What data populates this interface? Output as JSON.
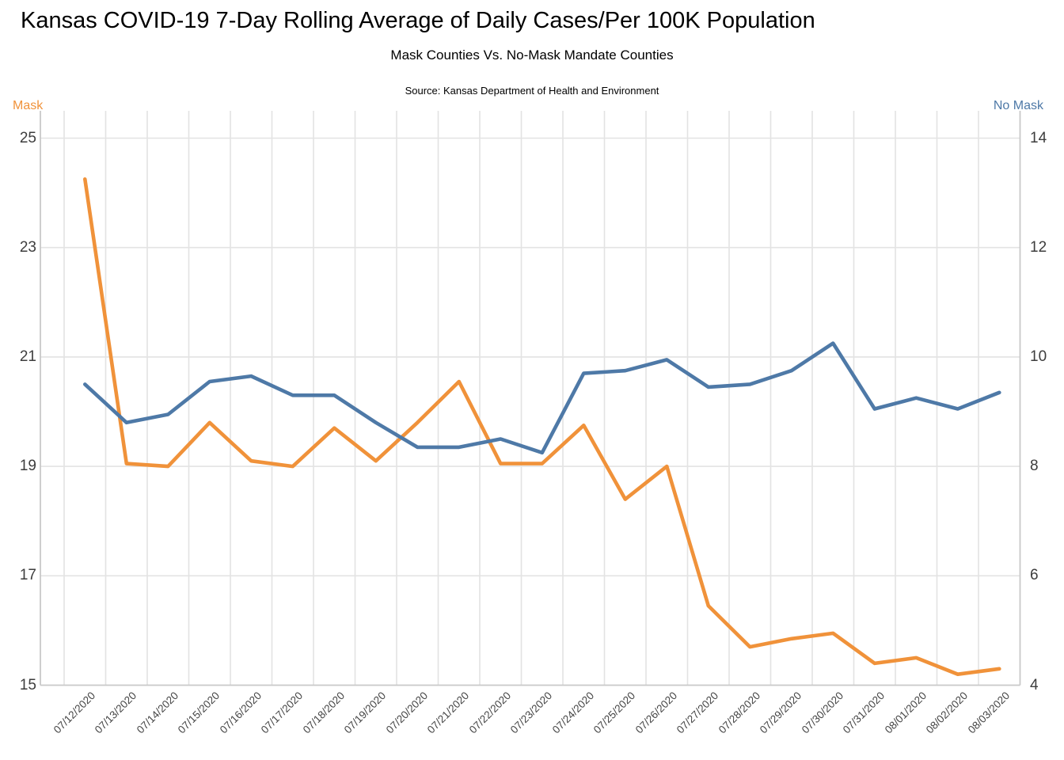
{
  "chart": {
    "title": "Kansas COVID-19 7-Day Rolling Average of Daily Cases/Per 100K Population",
    "subtitle": "Mask Counties Vs. No-Mask Mandate Counties",
    "source": "Source: Kansas Department of Health and Environment"
  },
  "chart_data": {
    "type": "line",
    "title": "Kansas COVID-19 7-Day Rolling Average of Daily Cases/Per 100K Population",
    "subtitle": "Mask Counties Vs. No-Mask Mandate Counties",
    "annotation": "Source: Kansas Department of Health and Environment",
    "x": [
      "07/12/2020",
      "07/13/2020",
      "07/14/2020",
      "07/15/2020",
      "07/16/2020",
      "07/17/2020",
      "07/18/2020",
      "07/19/2020",
      "07/20/2020",
      "07/21/2020",
      "07/22/2020",
      "07/23/2020",
      "07/24/2020",
      "07/25/2020",
      "07/26/2020",
      "07/27/2020",
      "07/28/2020",
      "07/29/2020",
      "07/30/2020",
      "07/31/2020",
      "08/01/2020",
      "08/02/2020",
      "08/03/2020"
    ],
    "series": [
      {
        "name": "Mask",
        "axis": "left",
        "color": "#F0923A",
        "values": [
          24.25,
          19.05,
          19.0,
          19.8,
          19.1,
          19.0,
          19.7,
          19.1,
          19.8,
          20.55,
          19.05,
          19.05,
          19.75,
          18.4,
          19.0,
          16.45,
          15.7,
          15.85,
          15.95,
          15.4,
          15.5,
          15.2,
          15.3
        ]
      },
      {
        "name": "No Mask",
        "axis": "right",
        "color": "#4E79A7",
        "values": [
          9.5,
          8.8,
          8.95,
          9.55,
          9.65,
          9.3,
          9.3,
          8.8,
          8.35,
          8.35,
          8.5,
          8.25,
          9.7,
          9.75,
          9.95,
          9.45,
          9.5,
          9.75,
          10.25,
          9.05,
          9.25,
          9.05,
          9.35
        ]
      }
    ],
    "left_axis": {
      "title": "Mask",
      "ticks": [
        25,
        23,
        21,
        19,
        17,
        15
      ],
      "min": 15,
      "max": 25
    },
    "right_axis": {
      "title": "No Mask",
      "ticks": [
        14,
        12,
        10,
        8,
        6,
        4
      ],
      "min": 4,
      "max": 14
    },
    "grid": true,
    "legend_position": "axis-titles-top",
    "colors": {
      "grid": "#e3e3e3",
      "frame": "#c9c9c9",
      "tick_text": "#3d3d3d",
      "date_text": "#454545"
    }
  }
}
